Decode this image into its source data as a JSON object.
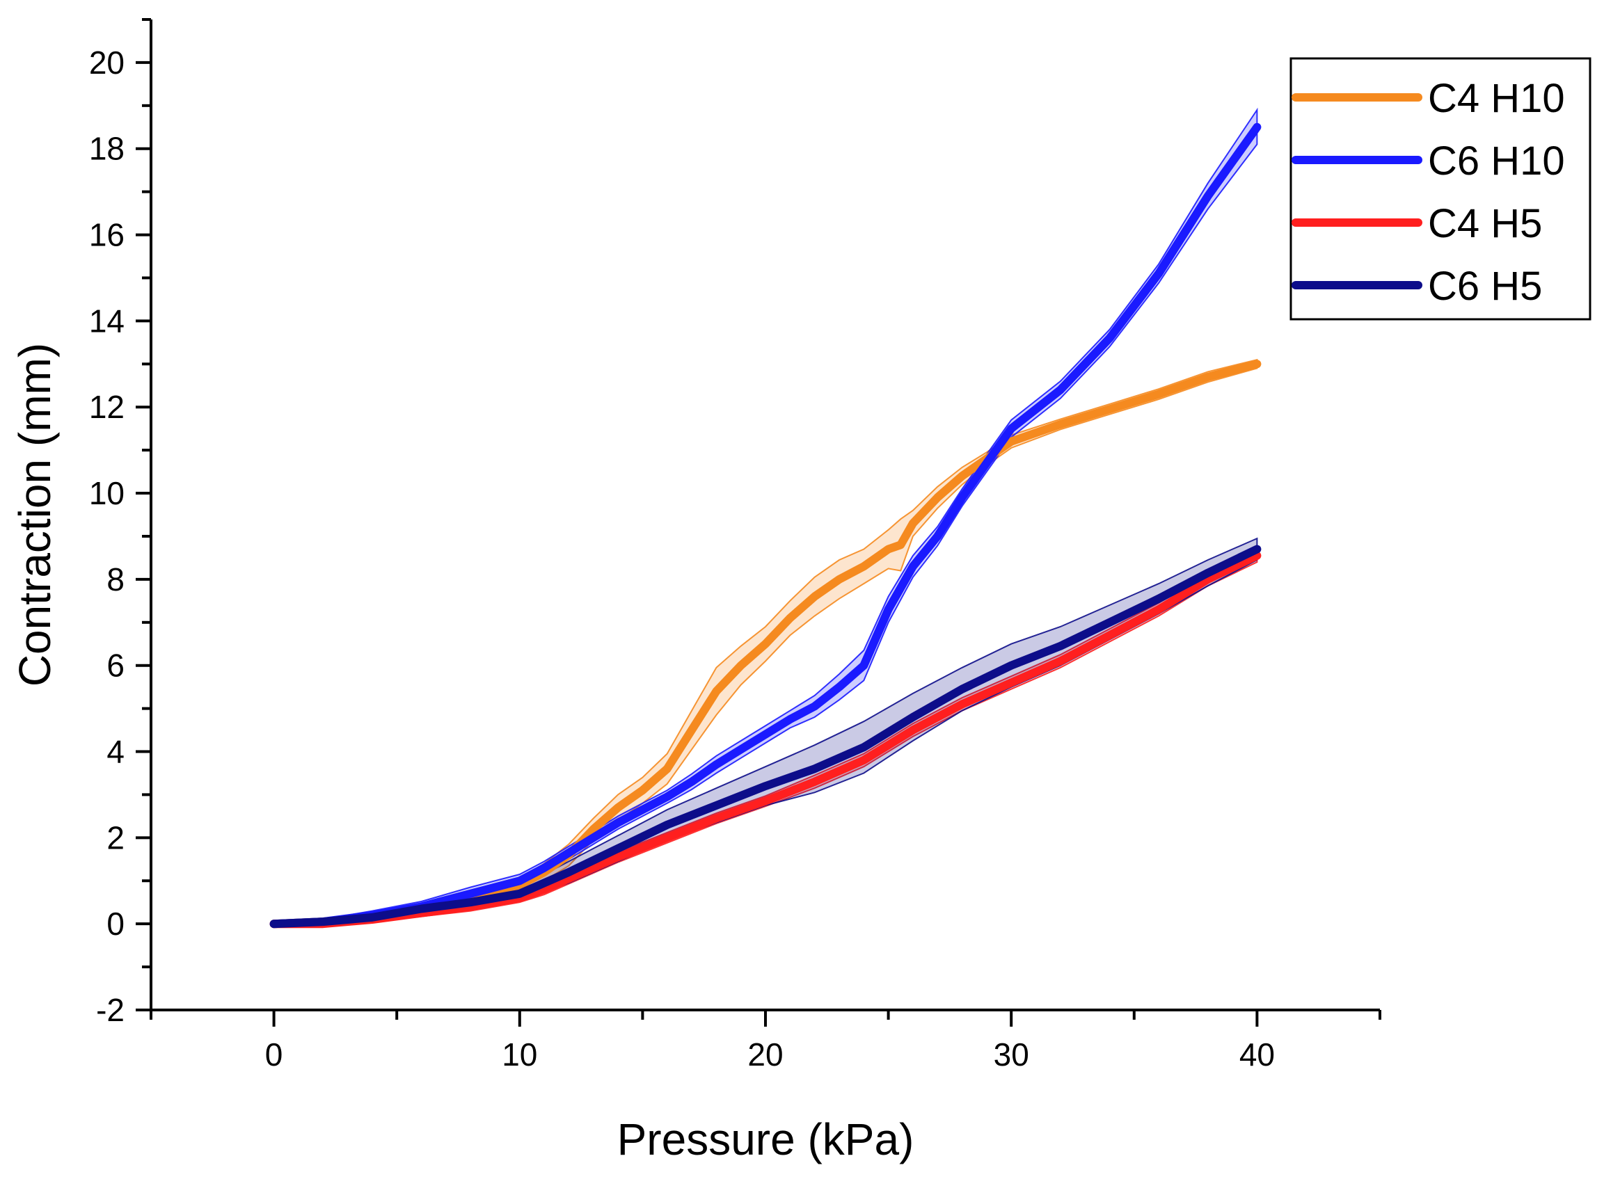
{
  "chart_data": {
    "type": "line",
    "title": "",
    "xlabel": "Pressure (kPa)",
    "ylabel": "Contraction (mm)",
    "xlim": [
      -5,
      45
    ],
    "ylim": [
      -2,
      21
    ],
    "xticks": [
      0,
      10,
      20,
      30,
      40
    ],
    "xtick_labels": [
      "0",
      "10",
      "20",
      "30",
      "40"
    ],
    "yticks": [
      -2,
      0,
      2,
      4,
      6,
      8,
      10,
      12,
      14,
      16,
      18,
      20
    ],
    "ytick_labels": [
      "-2",
      "0",
      "2",
      "4",
      "6",
      "8",
      "10",
      "12",
      "14",
      "16",
      "18",
      "20"
    ],
    "grid": false,
    "legend_position": "top-right",
    "series": [
      {
        "name": "C4 H10",
        "color": "#f58a1f",
        "x": [
          0,
          2,
          4,
          6,
          8,
          10,
          11,
          12,
          13,
          14,
          15,
          16,
          17,
          18,
          19,
          20,
          21,
          22,
          23,
          24,
          25,
          25.5,
          26,
          27,
          28,
          29,
          30,
          32,
          34,
          36,
          38,
          40
        ],
        "y": [
          0,
          0.05,
          0.15,
          0.3,
          0.55,
          0.9,
          1.2,
          1.6,
          2.2,
          2.7,
          3.1,
          3.6,
          4.5,
          5.4,
          6.0,
          6.5,
          7.1,
          7.6,
          8.0,
          8.3,
          8.7,
          8.8,
          9.3,
          9.9,
          10.4,
          10.8,
          11.2,
          11.6,
          11.95,
          12.3,
          12.7,
          13.0
        ],
        "band": [
          0,
          0.05,
          0.08,
          0.1,
          0.12,
          0.15,
          0.2,
          0.25,
          0.25,
          0.3,
          0.3,
          0.35,
          0.45,
          0.55,
          0.45,
          0.4,
          0.4,
          0.45,
          0.45,
          0.4,
          0.45,
          0.6,
          0.3,
          0.25,
          0.2,
          0.15,
          0.15,
          0.12,
          0.12,
          0.12,
          0.12,
          0.1
        ]
      },
      {
        "name": "C6 H10",
        "color": "#1a1aff",
        "x": [
          0,
          2,
          4,
          6,
          8,
          10,
          11,
          12,
          13,
          14,
          15,
          16,
          17,
          18,
          19,
          20,
          21,
          22,
          23,
          24,
          25,
          26,
          27,
          28,
          29,
          30,
          32,
          34,
          36,
          38,
          40
        ],
        "y": [
          0,
          0.05,
          0.2,
          0.4,
          0.7,
          1.0,
          1.3,
          1.65,
          2.0,
          2.35,
          2.65,
          2.95,
          3.3,
          3.7,
          4.05,
          4.4,
          4.75,
          5.05,
          5.5,
          6.0,
          7.3,
          8.3,
          9.0,
          9.9,
          10.7,
          11.5,
          12.4,
          13.6,
          15.1,
          16.9,
          18.5
        ],
        "band": [
          0.02,
          0.05,
          0.1,
          0.12,
          0.15,
          0.15,
          0.15,
          0.15,
          0.15,
          0.15,
          0.15,
          0.15,
          0.18,
          0.2,
          0.2,
          0.2,
          0.2,
          0.25,
          0.3,
          0.35,
          0.3,
          0.25,
          0.22,
          0.2,
          0.2,
          0.2,
          0.2,
          0.2,
          0.22,
          0.3,
          0.4
        ]
      },
      {
        "name": "C4 H5",
        "color": "#ff1f1f",
        "x": [
          0,
          2,
          4,
          6,
          8,
          10,
          11,
          12,
          14,
          16,
          18,
          20,
          22,
          24,
          26,
          28,
          30,
          32,
          34,
          36,
          38,
          40
        ],
        "y": [
          0,
          0.0,
          0.1,
          0.25,
          0.4,
          0.6,
          0.8,
          1.05,
          1.55,
          2.0,
          2.45,
          2.85,
          3.3,
          3.8,
          4.5,
          5.1,
          5.6,
          6.1,
          6.7,
          7.3,
          8.0,
          8.55
        ],
        "band": [
          0.02,
          0.05,
          0.05,
          0.08,
          0.1,
          0.1,
          0.12,
          0.12,
          0.12,
          0.12,
          0.12,
          0.12,
          0.15,
          0.15,
          0.15,
          0.15,
          0.15,
          0.15,
          0.15,
          0.15,
          0.15,
          0.15
        ]
      },
      {
        "name": "C6 H5",
        "color": "#0d0d8a",
        "x": [
          0,
          2,
          4,
          6,
          8,
          10,
          11,
          12,
          14,
          16,
          18,
          20,
          22,
          24,
          26,
          28,
          30,
          32,
          34,
          36,
          38,
          40
        ],
        "y": [
          0,
          0.05,
          0.15,
          0.35,
          0.5,
          0.7,
          0.95,
          1.2,
          1.75,
          2.3,
          2.75,
          3.2,
          3.6,
          4.1,
          4.8,
          5.45,
          6.0,
          6.45,
          7.0,
          7.55,
          8.15,
          8.7
        ],
        "band": [
          0.02,
          0.05,
          0.1,
          0.12,
          0.12,
          0.15,
          0.2,
          0.25,
          0.3,
          0.35,
          0.4,
          0.45,
          0.55,
          0.6,
          0.55,
          0.5,
          0.5,
          0.45,
          0.4,
          0.35,
          0.3,
          0.25
        ]
      }
    ]
  }
}
